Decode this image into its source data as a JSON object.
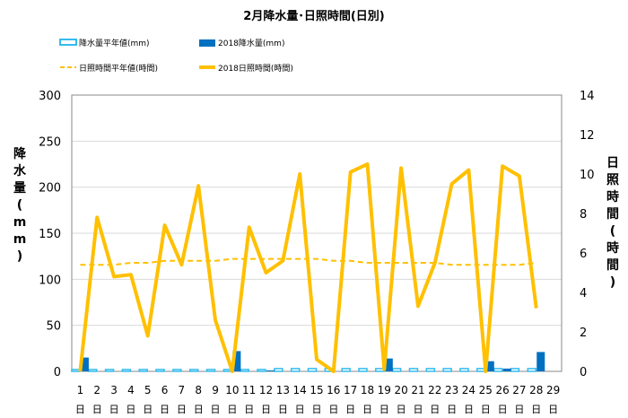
{
  "chart_data": {
    "type": "combo",
    "title": "2月降水量･日照時間(日別)",
    "categories": [
      "1",
      "2",
      "3",
      "4",
      "5",
      "6",
      "7",
      "8",
      "9",
      "10",
      "11",
      "12",
      "13",
      "14",
      "15",
      "16",
      "17",
      "18",
      "19",
      "20",
      "21",
      "22",
      "23",
      "24",
      "25",
      "26",
      "27",
      "28",
      "29"
    ],
    "category_unit": "日",
    "y_left": {
      "label": "降水量(mm)",
      "min": 0,
      "max": 300,
      "step": 50
    },
    "y_right": {
      "label": "日照時間(時間)",
      "min": 0,
      "max": 14,
      "step": 2
    },
    "series": [
      {
        "name": "降水量平年値(mm)",
        "kind": "bar",
        "axis": "left",
        "color": "#33bbee",
        "values": [
          2,
          2,
          2,
          2,
          2,
          2,
          2,
          2,
          2,
          2,
          2,
          2,
          3,
          3,
          3,
          3,
          3,
          3,
          3,
          3,
          3,
          3,
          3,
          3,
          3,
          3,
          3,
          3,
          null
        ]
      },
      {
        "name": "2018降水量(mm)",
        "kind": "bar",
        "axis": "left",
        "color": "#0070c0",
        "values": [
          15,
          0,
          0,
          0,
          0,
          0,
          0,
          0,
          0,
          22,
          0,
          1,
          0,
          0,
          0,
          0,
          0,
          0,
          14,
          0,
          0,
          0,
          0,
          0,
          11,
          3,
          0,
          21,
          null
        ]
      },
      {
        "name": "日照時間平年値(時間)",
        "kind": "line",
        "axis": "right",
        "color": "#ffc000",
        "dash": true,
        "values": [
          5.4,
          5.4,
          5.4,
          5.5,
          5.5,
          5.6,
          5.6,
          5.6,
          5.6,
          5.7,
          5.7,
          5.7,
          5.7,
          5.7,
          5.7,
          5.6,
          5.6,
          5.5,
          5.5,
          5.5,
          5.5,
          5.5,
          5.4,
          5.4,
          5.4,
          5.4,
          5.4,
          5.5,
          null
        ]
      },
      {
        "name": "2018日照時間(時間)",
        "kind": "line",
        "axis": "right",
        "color": "#ffc000",
        "dash": false,
        "values": [
          0,
          7.8,
          4.8,
          4.9,
          1.8,
          7.4,
          5.4,
          9.4,
          2.6,
          0,
          7.3,
          5.0,
          5.6,
          10.0,
          0.6,
          0,
          10.1,
          10.5,
          0.1,
          10.3,
          3.3,
          5.5,
          9.5,
          10.2,
          0,
          10.4,
          9.9,
          3.2,
          null
        ]
      }
    ]
  }
}
